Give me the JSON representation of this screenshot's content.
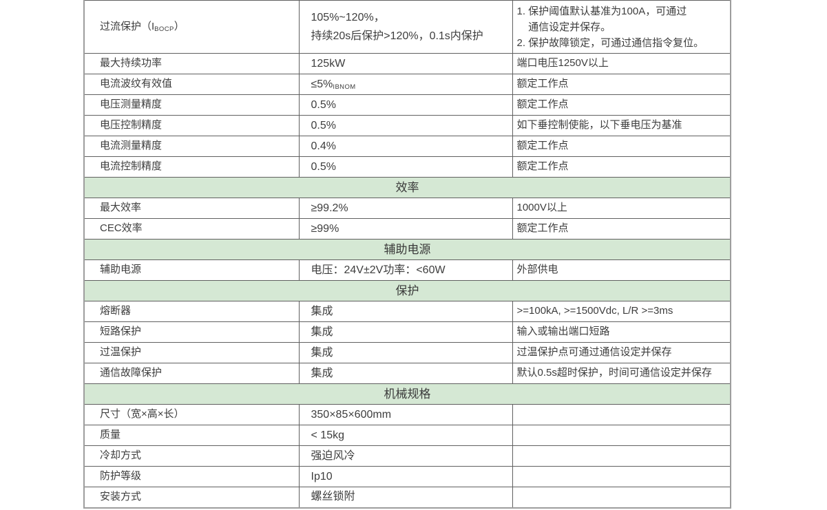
{
  "colors": {
    "section_header_bg": "#d5e8d4",
    "grid_line": "#5f5f5f",
    "text": "#3d3d3d",
    "page_bg": "#ffffff"
  },
  "table": {
    "columns": [
      "parameter",
      "value",
      "note"
    ],
    "rows": [
      {
        "type": "data",
        "cells": [
          {
            "parts": [
              {
                "t": "text",
                "v": "过流保护（I"
              },
              {
                "t": "sub",
                "v": "BOCP"
              },
              {
                "t": "text",
                "v": "）"
              }
            ]
          },
          {
            "lines": [
              "105%~120%，",
              "持续20s后保护>120%，0.1s内保护"
            ]
          },
          {
            "lines": [
              "1. 保护阈值默认基准为100A，可通过",
              "    通信设定并保存。",
              "2. 保护故障锁定，可通过通信指令复位。"
            ]
          }
        ]
      },
      {
        "type": "data",
        "cells": [
          "最大持续功率",
          "125kW",
          "端口电压1250V以上"
        ]
      },
      {
        "type": "data",
        "cells": [
          "电流波纹有效值",
          {
            "parts": [
              {
                "t": "text",
                "v": "≤5%"
              },
              {
                "t": "sub",
                "v": "IBNOM"
              }
            ]
          },
          "额定工作点"
        ]
      },
      {
        "type": "data",
        "cells": [
          "电压测量精度",
          "0.5%",
          "额定工作点"
        ]
      },
      {
        "type": "data",
        "cells": [
          "电压控制精度",
          "0.5%",
          "如下垂控制使能，以下垂电压为基准"
        ]
      },
      {
        "type": "data",
        "cells": [
          "电流测量精度",
          "0.4%",
          "额定工作点"
        ]
      },
      {
        "type": "data",
        "cells": [
          "电流控制精度",
          "0.5%",
          "额定工作点"
        ]
      },
      {
        "type": "section",
        "title": "效率"
      },
      {
        "type": "data",
        "cells": [
          "最大效率",
          "≥99.2%",
          "1000V以上"
        ]
      },
      {
        "type": "data",
        "cells": [
          "CEC效率",
          "≥99%",
          "额定工作点"
        ]
      },
      {
        "type": "section",
        "title": "辅助电源"
      },
      {
        "type": "data",
        "cells": [
          "辅助电源",
          "电压：24V±2V功率：<60W",
          "外部供电"
        ]
      },
      {
        "type": "section",
        "title": "保护"
      },
      {
        "type": "data",
        "cells": [
          "熔断器",
          "集成",
          ">=100kA, >=1500Vdc, L/R >=3ms"
        ]
      },
      {
        "type": "data",
        "cells": [
          "短路保护",
          "集成",
          "输入或输出端口短路"
        ]
      },
      {
        "type": "data",
        "cells": [
          "过温保护",
          "集成",
          "过温保护点可通过通信设定并保存"
        ]
      },
      {
        "type": "data",
        "cells": [
          "通信故障保护",
          "集成",
          "默认0.5s超时保护，时间可通信设定并保存"
        ]
      },
      {
        "type": "section",
        "title": "机械规格"
      },
      {
        "type": "data",
        "cells": [
          "尺寸（宽×高×长）",
          "350×85×600mm",
          ""
        ]
      },
      {
        "type": "data",
        "cells": [
          "质量",
          "< 15kg",
          ""
        ]
      },
      {
        "type": "data",
        "cells": [
          "冷却方式",
          "强迫风冷",
          ""
        ]
      },
      {
        "type": "data",
        "cells": [
          "防护等级",
          "Ip10",
          ""
        ]
      },
      {
        "type": "data",
        "cells": [
          "安装方式",
          "螺丝锁附",
          ""
        ]
      }
    ]
  }
}
